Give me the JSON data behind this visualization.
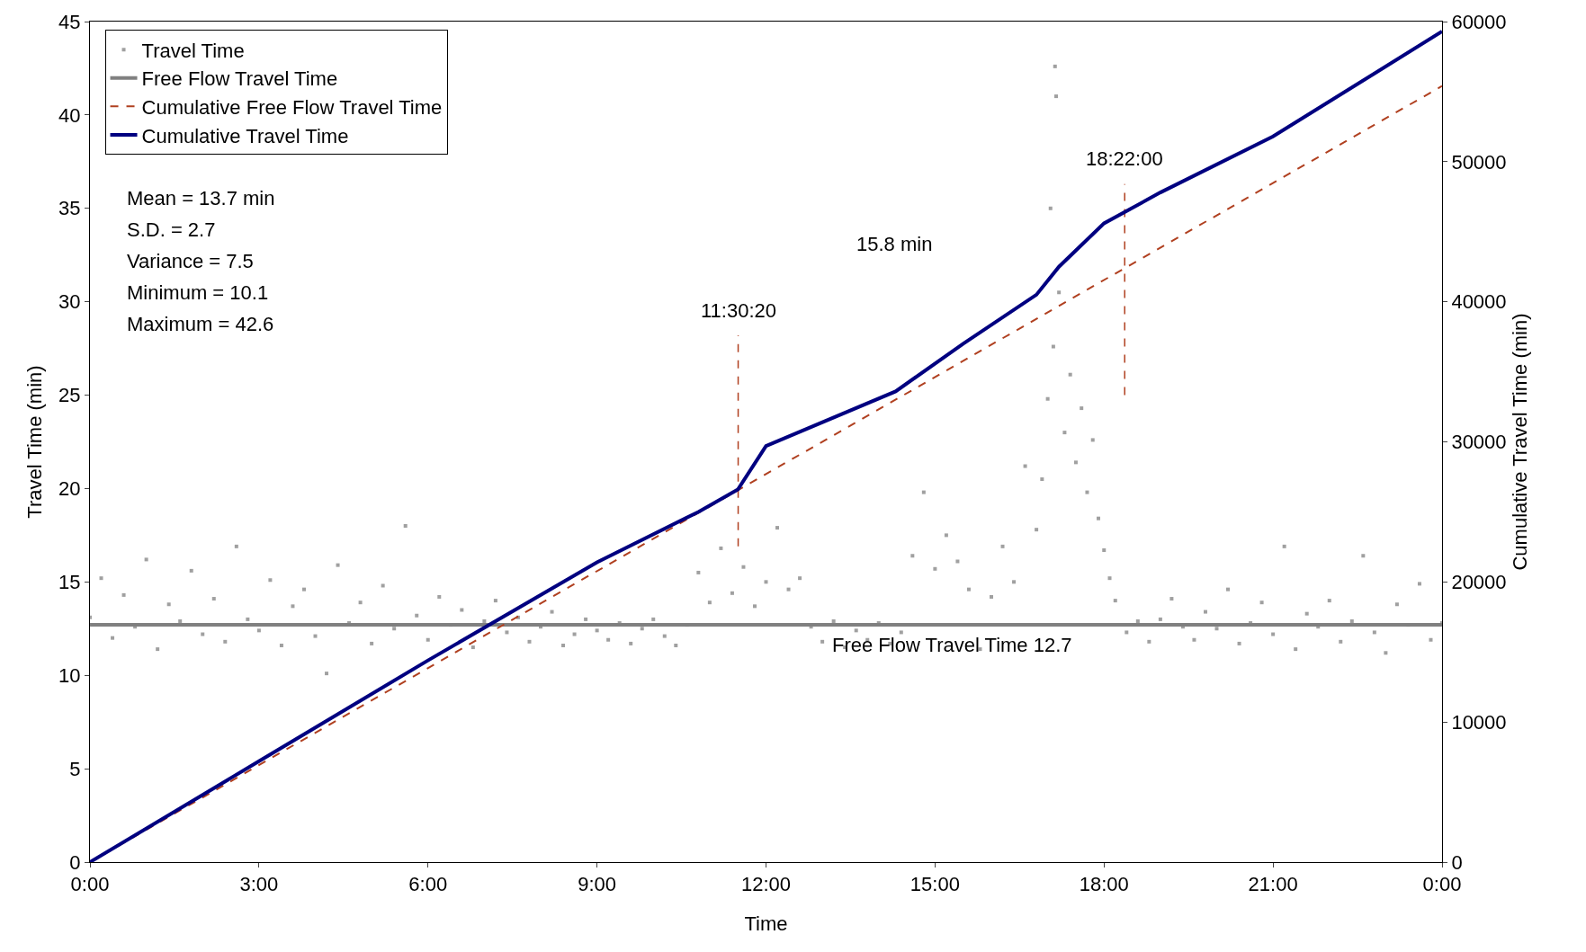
{
  "chart_data": {
    "type": "line",
    "xlabel": "Time",
    "ylabel": "Travel Time (min)",
    "y2label": "Cumulative Travel Time (min)",
    "xlim": [
      0,
      24
    ],
    "xticks": [
      {
        "value": 0,
        "label": "0:00"
      },
      {
        "value": 3,
        "label": "3:00"
      },
      {
        "value": 6,
        "label": "6:00"
      },
      {
        "value": 9,
        "label": "9:00"
      },
      {
        "value": 12,
        "label": "12:00"
      },
      {
        "value": 15,
        "label": "15:00"
      },
      {
        "value": 18,
        "label": "18:00"
      },
      {
        "value": 21,
        "label": "21:00"
      },
      {
        "value": 24,
        "label": "0:00"
      }
    ],
    "ylim": [
      0,
      45
    ],
    "yticks": [
      0,
      5,
      10,
      15,
      20,
      25,
      30,
      35,
      40,
      45
    ],
    "y2lim": [
      0,
      60000
    ],
    "y2ticks": [
      0,
      10000,
      20000,
      30000,
      40000,
      50000,
      60000
    ],
    "grid": false,
    "legend": "top left",
    "series": [
      {
        "name": "Travel Time",
        "type": "scatter",
        "marker": "square",
        "color": "#a0a0a0",
        "x": [
          0,
          0.2,
          0.4,
          0.6,
          0.8,
          1,
          1.2,
          1.4,
          1.6,
          1.8,
          2,
          2.2,
          2.4,
          2.6,
          2.8,
          3,
          3.2,
          3.4,
          3.6,
          3.8,
          4,
          4.2,
          4.4,
          4.6,
          4.8,
          5,
          5.2,
          5.4,
          5.6,
          5.8,
          6,
          6.2,
          6.4,
          6.6,
          6.8,
          7,
          7.2,
          7.4,
          7.6,
          7.8,
          8,
          8.2,
          8.4,
          8.6,
          8.8,
          9,
          9.2,
          9.4,
          9.6,
          9.8,
          10,
          10.2,
          10.4,
          10.6,
          10.8,
          11,
          11.2,
          11.4,
          11.6,
          11.8,
          12,
          12.2,
          12.4,
          12.6,
          12.8,
          13,
          13.2,
          13.4,
          13.6,
          13.8,
          14,
          14.2,
          14.4,
          14.6,
          14.8,
          15,
          15.2,
          15.4,
          15.6,
          15.8,
          16,
          16.2,
          16.4,
          16.6,
          16.8,
          16.9,
          17,
          17.05,
          17.1,
          17.13,
          17.15,
          17.2,
          17.3,
          17.4,
          17.5,
          17.6,
          17.7,
          17.8,
          17.9,
          18,
          18.1,
          18.2,
          18.4,
          18.6,
          18.8,
          19,
          19.2,
          19.4,
          19.6,
          19.8,
          20,
          20.2,
          20.4,
          20.6,
          20.8,
          21,
          21.2,
          21.4,
          21.6,
          21.8,
          22,
          22.2,
          22.4,
          22.6,
          22.8,
          23,
          23.2,
          23.4,
          23.6,
          23.8,
          24
        ],
        "values": [
          13.1,
          15.2,
          12.0,
          14.3,
          12.6,
          16.2,
          11.4,
          13.8,
          12.9,
          15.6,
          12.2,
          14.1,
          11.8,
          16.9,
          13.0,
          12.4,
          15.1,
          11.6,
          13.7,
          14.6,
          12.1,
          10.1,
          15.9,
          12.8,
          13.9,
          11.7,
          14.8,
          12.5,
          18.0,
          13.2,
          11.9,
          14.2,
          12.7,
          13.5,
          11.5,
          12.9,
          14.0,
          12.3,
          13.1,
          11.8,
          12.6,
          13.4,
          11.6,
          12.2,
          13.0,
          12.4,
          11.9,
          12.8,
          11.7,
          12.5,
          13.0,
          12.1,
          11.6,
          12.7,
          15.5,
          13.9,
          16.8,
          14.4,
          15.8,
          13.7,
          15.0,
          17.9,
          14.6,
          15.2,
          12.6,
          11.8,
          12.9,
          11.5,
          12.4,
          11.9,
          12.8,
          11.7,
          12.3,
          16.4,
          19.8,
          15.7,
          17.5,
          16.1,
          14.6,
          11.4,
          14.2,
          16.9,
          15.0,
          21.2,
          17.8,
          20.5,
          24.8,
          35.0,
          27.6,
          42.6,
          41.0,
          30.5,
          23.0,
          26.1,
          21.4,
          24.3,
          19.8,
          22.6,
          18.4,
          16.7,
          15.2,
          14.0,
          12.3,
          12.9,
          11.8,
          13.0,
          14.1,
          12.6,
          11.9,
          13.4,
          12.5,
          14.6,
          11.7,
          12.8,
          13.9,
          12.2,
          16.9,
          11.4,
          13.3,
          12.6,
          14.0,
          11.8,
          12.9,
          16.4,
          12.3,
          11.2,
          13.8,
          12.7,
          14.9,
          11.9,
          12.8
        ]
      },
      {
        "name": "Free Flow Travel Time",
        "color": "#808080",
        "line_style": "solid",
        "x": [
          0,
          24
        ],
        "values": [
          12.7,
          12.7
        ]
      },
      {
        "name": "Cumulative Free Flow Travel Time",
        "axis": "y2",
        "color": "#b04020",
        "line_style": "dashed",
        "x": [
          0,
          24
        ],
        "values": [
          0,
          55400
        ]
      },
      {
        "name": "Cumulative Travel Time",
        "axis": "y2",
        "color": "#000080",
        "line_style": "solid",
        "x": [
          0,
          3,
          6,
          9,
          10.8,
          11.5,
          12,
          14.3,
          15.5,
          16.8,
          17.2,
          18,
          19,
          21,
          24
        ],
        "values": [
          0,
          7200,
          14400,
          21400,
          25000,
          26600,
          29700,
          33600,
          37000,
          40500,
          42500,
          45600,
          47800,
          51800,
          59300
        ]
      },
      {
        "color": "#b04020",
        "line_style": "dashed",
        "x": [
          11.5056,
          11.5056
        ],
        "values": [
          16.9,
          28.2
        ]
      },
      {
        "color": "#b04020",
        "line_style": "dashed",
        "x": [
          18.3667,
          18.3667
        ],
        "values": [
          25.0,
          36.3
        ]
      }
    ],
    "annotations": [
      {
        "text": "11:30:20",
        "x": 11.5056,
        "y": 28.2
      },
      {
        "text": "18:22:00",
        "x": 18.3667,
        "y": 36.3
      },
      {
        "text": "Free Flow Travel Time 12.7",
        "x": 15.3,
        "y": 12.7
      },
      "Mean = 13.7 min",
      "S.D. = 2.7",
      "Variance = 7.5",
      "Minimum = 10.1",
      "Maximum = 42.6",
      "15.8 min"
    ]
  }
}
